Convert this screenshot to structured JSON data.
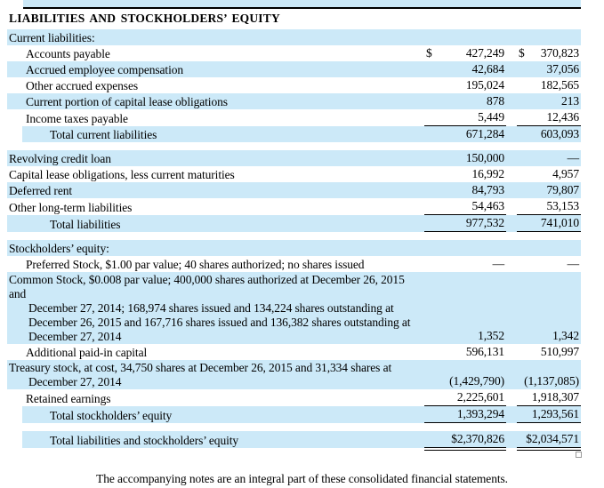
{
  "colors": {
    "row_band": "#cce9f8",
    "rule": "#000000",
    "text": "#000000"
  },
  "table": {
    "header": "LIABILITIES AND STOCKHOLDERS’ EQUITY",
    "rows": [
      {
        "label": "Current liabilities:",
        "indent": "0",
        "shaded": true
      },
      {
        "label": "Accounts payable",
        "indent": "1",
        "shaded": false,
        "d1": "$",
        "v1": "427,249",
        "d2": "$",
        "v2": "370,823"
      },
      {
        "label": "Accrued employee compensation",
        "indent": "1",
        "shaded": true,
        "v1": "42,684",
        "v2": "37,056"
      },
      {
        "label": "Other accrued expenses",
        "indent": "1",
        "shaded": false,
        "v1": "195,024",
        "v2": "182,565"
      },
      {
        "label": "Current portion of capital lease obligations",
        "indent": "1",
        "shaded": true,
        "v1": "878",
        "v2": "213"
      },
      {
        "label": "Income taxes payable",
        "indent": "1",
        "shaded": false,
        "v1": "5,449",
        "v2": "12,436",
        "rule": "single"
      },
      {
        "label": "Total current liabilities",
        "indent": "total",
        "shaded": true,
        "inset": true,
        "v1": "671,284",
        "v2": "603,093"
      },
      {
        "type": "gap"
      },
      {
        "label": "Revolving credit loan",
        "indent": "0",
        "shaded": true,
        "v1": "150,000",
        "v2": "—"
      },
      {
        "label": "Capital lease obligations, less current maturities",
        "indent": "0",
        "shaded": false,
        "v1": "16,992",
        "v2": "4,957"
      },
      {
        "label": "Deferred rent",
        "indent": "0",
        "shaded": true,
        "v1": "84,793",
        "v2": "79,807"
      },
      {
        "label": "Other long-term liabilities",
        "indent": "0",
        "shaded": false,
        "v1": "54,463",
        "v2": "53,153",
        "rule": "single"
      },
      {
        "label": "Total liabilities",
        "indent": "total2",
        "shaded": true,
        "v1": "977,532",
        "v2": "741,010",
        "rule": "single"
      },
      {
        "type": "gap"
      },
      {
        "label": "Stockholders’ equity:",
        "indent": "0",
        "shaded": true
      },
      {
        "label": "Preferred Stock, $1.00 par value; 40 shares authorized; no shares issued",
        "indent": "1",
        "shaded": false,
        "v1": "—",
        "v2": "—"
      },
      {
        "label": "Common Stock, $0.008 par value; 400,000 shares authorized at December 26, 2015 and December 27, 2014; 168,974 shares issued and 134,224 shares outstanding at December 26, 2015 and 167,716 shares issued and 136,382 shares outstanding at December 27, 2014",
        "lines": [
          "Common Stock, $0.008 par value; 400,000 shares authorized at December 26, 2015 and",
          "December 27, 2014; 168,974 shares issued and 134,224 shares outstanding at",
          "December 26, 2015 and 167,716 shares issued and 136,382 shares outstanding at",
          "December 27, 2014"
        ],
        "indent": "0",
        "shaded": true,
        "v1": "1,352",
        "v2": "1,342"
      },
      {
        "label": "Additional paid-in capital",
        "indent": "1",
        "shaded": false,
        "v1": "596,131",
        "v2": "510,997"
      },
      {
        "label": "Treasury stock, at cost, 34,750 shares at December 26, 2015 and 31,334 shares at December 27, 2014",
        "lines": [
          "Treasury stock, at cost, 34,750 shares at December 26, 2015 and 31,334 shares at",
          "December 27, 2014"
        ],
        "indent": "0",
        "shaded": true,
        "v1": "(1,429,790)",
        "v2": "(1,137,085)"
      },
      {
        "label": "Retained earnings",
        "indent": "1",
        "shaded": false,
        "v1": "2,225,601",
        "v2": "1,918,307",
        "rule": "single"
      },
      {
        "label": "Total stockholders’ equity",
        "indent": "total",
        "shaded": true,
        "inset": true,
        "v1": "1,393,294",
        "v2": "1,293,561",
        "rule": "single"
      },
      {
        "type": "gap"
      },
      {
        "label": "Total liabilities and stockholders’ equity",
        "indent": "total",
        "shaded": true,
        "inset": true,
        "v1": "$2,370,826",
        "v2": "$2,034,571",
        "rule": "double"
      }
    ]
  },
  "footer": {
    "note": "The accompanying notes are an integral part of these consolidated financial statements."
  }
}
